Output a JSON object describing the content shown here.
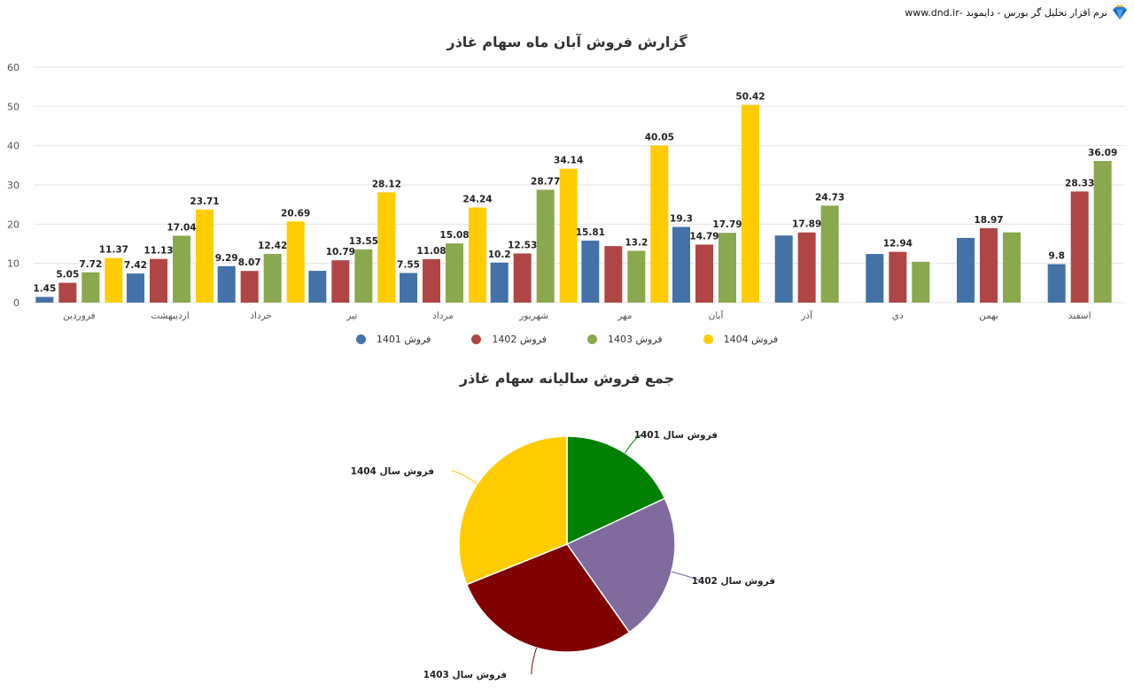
{
  "header": {
    "brand_text": "نرم افزار تحلیل گر بورس - دایموند -www.dnd.ir",
    "logo_icon": "diamond-icon"
  },
  "colors": {
    "s1401": "#4472a8",
    "s1402": "#b04545",
    "s1403": "#8aa84e",
    "s1404": "#ffcc00",
    "pie1401": "#008000",
    "pie1402": "#806a9e",
    "pie1403": "#800000",
    "pie1404": "#ffcc00"
  },
  "chart_data": [
    {
      "type": "bar",
      "title": "گزارش فروش آبان ماه سهام غاذر",
      "xlabel": "",
      "ylabel": "",
      "ylim": [
        0,
        60
      ],
      "yticks": [
        0,
        10,
        20,
        30,
        40,
        50,
        60
      ],
      "grid": true,
      "legend_position": "bottom",
      "categories": [
        "فروردین",
        "اردیبهشت",
        "خرداد",
        "تیر",
        "مرداد",
        "شهریور",
        "مهر",
        "آبان",
        "آذر",
        "دي",
        "بهمن",
        "اسفند"
      ],
      "series": [
        {
          "name": "فروش 1401",
          "color": "#4472a8",
          "values": [
            1.45,
            7.42,
            9.29,
            8.1,
            7.55,
            10.2,
            15.81,
            19.3,
            17.1,
            12.4,
            16.5,
            9.8
          ],
          "labeled": [
            true,
            true,
            true,
            false,
            true,
            true,
            true,
            true,
            false,
            false,
            false,
            true
          ]
        },
        {
          "name": "فروش 1402",
          "color": "#b04545",
          "values": [
            5.05,
            11.13,
            8.07,
            10.79,
            11.08,
            12.53,
            14.4,
            14.79,
            17.89,
            12.94,
            18.97,
            28.33
          ],
          "labeled": [
            true,
            true,
            true,
            true,
            true,
            true,
            false,
            true,
            true,
            true,
            true,
            true
          ]
        },
        {
          "name": "فروش 1403",
          "color": "#8aa84e",
          "values": [
            7.72,
            17.04,
            12.42,
            13.55,
            15.08,
            28.77,
            13.2,
            17.79,
            24.73,
            10.4,
            17.9,
            36.09
          ],
          "labeled": [
            true,
            true,
            true,
            true,
            true,
            true,
            true,
            true,
            true,
            false,
            false,
            true
          ]
        },
        {
          "name": "فروش 1404",
          "color": "#ffcc00",
          "values": [
            11.37,
            23.71,
            20.69,
            28.12,
            24.24,
            34.14,
            40.05,
            50.42,
            null,
            null,
            null,
            null
          ],
          "labeled": [
            true,
            true,
            true,
            true,
            true,
            true,
            true,
            true,
            false,
            false,
            false,
            false
          ]
        }
      ]
    },
    {
      "type": "pie",
      "title": "جمع فروش سالیانه سهام غاذر",
      "labels": [
        "فروش سال 1401",
        "فروش سال 1402",
        "فروش سال 1403",
        "فروش سال 1404"
      ],
      "values": [
        134.9,
        166.0,
        214.7,
        232.7
      ],
      "colors": [
        "#008000",
        "#806a9e",
        "#800000",
        "#ffcc00"
      ]
    }
  ]
}
